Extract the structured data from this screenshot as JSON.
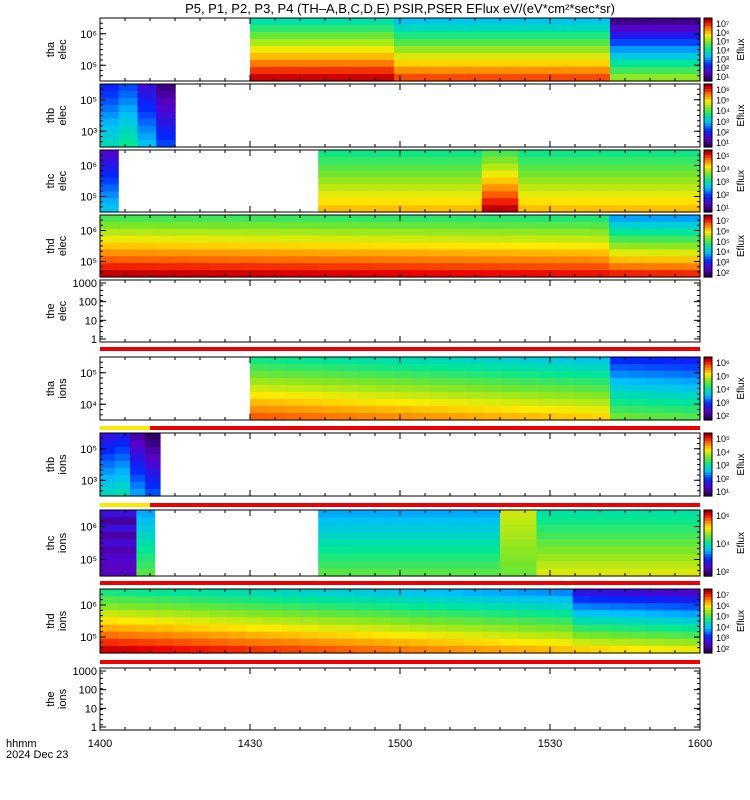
{
  "title": "P5, P1, P2, P3, P4 (TH–A,B,C,D,E) PSIR,PSER EFlux eV/(eV*cm²*sec*sr)",
  "footer": {
    "time_label": "hhmm",
    "date_label": "2024 Dec 23"
  },
  "chart_data": [
    {
      "type": "heatmap",
      "panel_id": "tha-elec",
      "ylabel": [
        "tha",
        "elec"
      ],
      "yscale": "log",
      "yticks": [
        "10⁶",
        "10⁵"
      ],
      "cbar": {
        "label": "Eflux",
        "ticks": [
          "10⁷",
          "10⁶",
          "10⁵",
          "10⁴",
          "10³",
          "10²",
          "10¹"
        ]
      },
      "data_start": "1430",
      "data_end": "1600",
      "below_bar": null
    },
    {
      "type": "heatmap",
      "panel_id": "thb-elec",
      "ylabel": [
        "thb",
        "elec"
      ],
      "yscale": "log",
      "yticks": [
        "10⁵",
        "10³"
      ],
      "cbar": {
        "label": "Eflux",
        "ticks": [
          "10⁶",
          "10⁵",
          "10⁴",
          "10³",
          "10²",
          "10¹"
        ]
      },
      "data_start": "1400",
      "data_end": "1415",
      "below_bar": null
    },
    {
      "type": "heatmap",
      "panel_id": "thc-elec",
      "ylabel": [
        "thc",
        "elec"
      ],
      "yscale": "log",
      "yticks": [
        "10⁶",
        "10⁵"
      ],
      "cbar": {
        "label": "Eflux",
        "ticks": [
          "10⁵",
          "10⁴",
          "10³",
          "10²",
          "10¹"
        ]
      },
      "data_start": "1400",
      "data_end": "1600",
      "gap": [
        "1404",
        "1443"
      ],
      "below_bar": null
    },
    {
      "type": "heatmap",
      "panel_id": "thd-elec",
      "ylabel": [
        "thd",
        "elec"
      ],
      "yscale": "log",
      "yticks": [
        "10⁶",
        "10⁵"
      ],
      "cbar": {
        "label": "Eflux",
        "ticks": [
          "10⁷",
          "10⁶",
          "10⁵",
          "10⁴",
          "10³",
          "10²"
        ]
      },
      "data_start": "1400",
      "data_end": "1600",
      "below_bar": null
    },
    {
      "type": "line",
      "panel_id": "the-elec",
      "ylabel": [
        "the",
        "elec"
      ],
      "yscale": "log",
      "ylim": [
        1,
        1000
      ],
      "yticks": [
        "1000",
        "100",
        "10",
        "1"
      ],
      "below_bar": "red"
    },
    {
      "type": "heatmap",
      "panel_id": "tha-ions",
      "ylabel": [
        "tha",
        "ions"
      ],
      "yscale": "log",
      "yticks": [
        "10⁵",
        "10⁴"
      ],
      "cbar": {
        "label": "Eflux",
        "ticks": [
          "10⁶",
          "10⁵",
          "10⁴",
          "10³",
          "10²"
        ]
      },
      "data_start": "1430",
      "data_end": "1600",
      "below_bar": "yellow-red"
    },
    {
      "type": "heatmap",
      "panel_id": "thb-ions",
      "ylabel": [
        "thb",
        "ions"
      ],
      "yscale": "log",
      "yticks": [
        "10⁵",
        "10³"
      ],
      "cbar": {
        "label": "Eflux",
        "ticks": [
          "10⁵",
          "10⁴",
          "10³",
          "10²",
          "10¹"
        ]
      },
      "data_start": "1400",
      "data_end": "1412",
      "below_bar": "yellow-red"
    },
    {
      "type": "heatmap",
      "panel_id": "thc-ions",
      "ylabel": [
        "thc",
        "ions"
      ],
      "yscale": "log",
      "yticks": [
        "10⁶",
        "10⁵"
      ],
      "cbar": {
        "label": "Eflux",
        "ticks": [
          "10⁶",
          "10⁴",
          "10²"
        ]
      },
      "data_start": "1400",
      "data_end": "1600",
      "gap": [
        "1412",
        "1443"
      ],
      "below_bar": "red"
    },
    {
      "type": "heatmap",
      "panel_id": "thd-ions",
      "ylabel": [
        "thd",
        "ions"
      ],
      "yscale": "log",
      "yticks": [
        "10⁶",
        "10⁵"
      ],
      "cbar": {
        "label": "Eflux",
        "ticks": [
          "10⁷",
          "10⁶",
          "10⁵",
          "10⁴",
          "10³",
          "10²"
        ]
      },
      "data_start": "1400",
      "data_end": "1600",
      "below_bar": "red"
    },
    {
      "type": "line",
      "panel_id": "the-ions",
      "ylabel": [
        "the",
        "ions"
      ],
      "yscale": "log",
      "ylim": [
        1,
        1000
      ],
      "yticks": [
        "1000",
        "100",
        "10",
        "1"
      ],
      "below_bar": null
    }
  ],
  "xaxis": {
    "ticks": [
      "1400",
      "1430",
      "1500",
      "1530",
      "1600"
    ],
    "range": [
      "1400",
      "1600"
    ]
  }
}
